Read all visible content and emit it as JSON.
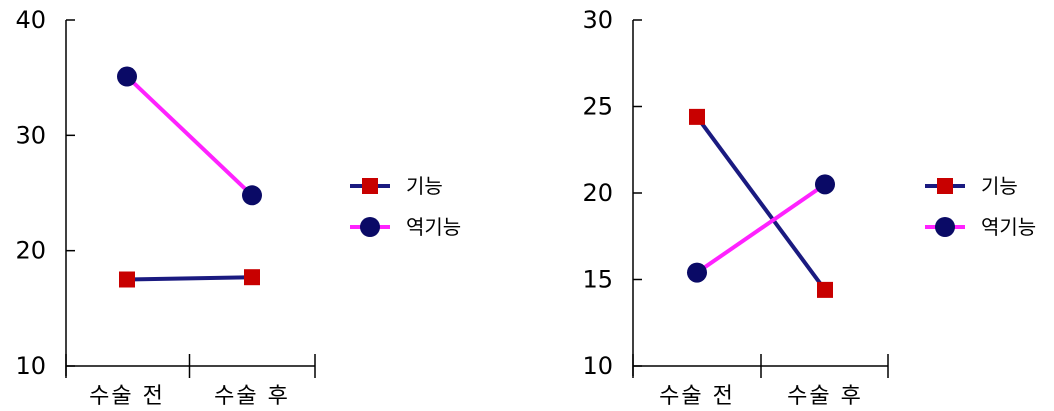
{
  "colors": {
    "functional": "#1a1a80",
    "retrograde": "#ff22ff",
    "square_marker": "#c80000",
    "circle_marker": "#0a0a66"
  },
  "legend": [
    "기능",
    "역기능"
  ],
  "chart_data": [
    {
      "type": "line",
      "categories": [
        "수술 전",
        "수술 후"
      ],
      "ylim": [
        10,
        40
      ],
      "yticks": [
        10,
        20,
        30,
        40
      ],
      "series": [
        {
          "name": "기능",
          "values": [
            17.5,
            17.7
          ],
          "color": "#1a1a80",
          "marker": "square"
        },
        {
          "name": "역기능",
          "values": [
            35.1,
            24.8
          ],
          "color": "#ff22ff",
          "marker": "circle"
        }
      ],
      "legend_position": "right"
    },
    {
      "type": "line",
      "categories": [
        "수술 전",
        "수술 후"
      ],
      "ylim": [
        10,
        30
      ],
      "yticks": [
        10,
        15,
        20,
        25,
        30
      ],
      "series": [
        {
          "name": "기능",
          "values": [
            24.4,
            14.4
          ],
          "color": "#1a1a80",
          "marker": "square"
        },
        {
          "name": "역기능",
          "values": [
            15.4,
            20.5
          ],
          "color": "#ff22ff",
          "marker": "circle"
        }
      ],
      "legend_position": "right"
    }
  ]
}
